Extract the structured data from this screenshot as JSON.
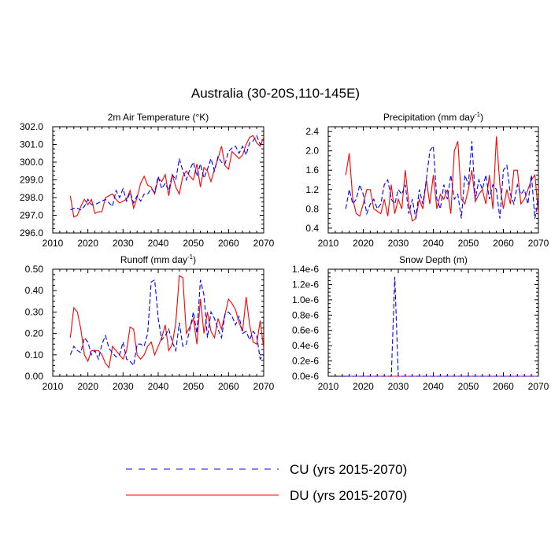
{
  "figure": {
    "title": "Australia (30-20S,110-145E)"
  },
  "legend": {
    "placement": "bottom-center",
    "entries": [
      {
        "label": "CU (yrs 2015-2070)",
        "color": "#0000ff",
        "style": "dashed"
      },
      {
        "label": "DU (yrs 2015-2070)",
        "color": "#ff0000",
        "style": "solid"
      }
    ]
  },
  "chart_data": [
    {
      "type": "line",
      "title": "2m Air Temperature (°K)",
      "xlim": [
        2010,
        2070
      ],
      "ylim": [
        296.0,
        302.0
      ],
      "xticks": [
        2010,
        2020,
        2030,
        2040,
        2050,
        2060,
        2070
      ],
      "yticks": [
        296.0,
        297.0,
        298.0,
        299.0,
        300.0,
        301.0,
        302.0
      ],
      "ytick_labels": [
        "296.0",
        "297.0",
        "298.0",
        "299.0",
        "300.0",
        "301.0",
        "302.0"
      ],
      "x": [
        2015,
        2016,
        2017,
        2018,
        2019,
        2020,
        2021,
        2022,
        2023,
        2024,
        2025,
        2026,
        2027,
        2028,
        2029,
        2030,
        2031,
        2032,
        2033,
        2034,
        2035,
        2036,
        2037,
        2038,
        2039,
        2040,
        2041,
        2042,
        2043,
        2044,
        2045,
        2046,
        2047,
        2048,
        2049,
        2050,
        2051,
        2052,
        2053,
        2054,
        2055,
        2056,
        2057,
        2058,
        2059,
        2060,
        2061,
        2062,
        2063,
        2064,
        2065,
        2066,
        2067,
        2068,
        2069,
        2070
      ],
      "series": [
        {
          "name": "CU (yrs 2015-2070)",
          "values": [
            297.3,
            297.4,
            297.4,
            297.3,
            297.5,
            297.9,
            297.6,
            297.6,
            297.7,
            297.8,
            297.9,
            297.7,
            297.5,
            298.4,
            298.0,
            298.5,
            297.8,
            298.3,
            297.7,
            298.1,
            297.8,
            298.2,
            298.2,
            298.5,
            298.3,
            299.2,
            298.5,
            298.8,
            298.4,
            299.3,
            299.0,
            300.2,
            299.5,
            299.0,
            299.6,
            300.0,
            299.2,
            299.9,
            299.1,
            299.6,
            300.2,
            299.5,
            300.3,
            300.0,
            299.9,
            300.6,
            300.8,
            300.9,
            300.5,
            300.9,
            300.4,
            301.1,
            301.2,
            301.5,
            301.0,
            301.2
          ]
        },
        {
          "name": "DU (yrs 2015-2070)",
          "values": [
            298.1,
            296.9,
            297.0,
            297.5,
            297.9,
            297.6,
            297.9,
            297.1,
            297.2,
            297.2,
            298.0,
            298.1,
            298.2,
            297.9,
            297.7,
            297.8,
            297.9,
            298.4,
            297.4,
            298.0,
            298.8,
            299.2,
            298.7,
            298.6,
            298.2,
            299.1,
            298.9,
            299.3,
            298.1,
            299.3,
            298.6,
            298.2,
            299.2,
            299.5,
            299.2,
            299.0,
            299.9,
            298.6,
            299.7,
            299.5,
            298.9,
            299.6,
            300.2,
            300.9,
            299.8,
            299.6,
            300.6,
            300.4,
            300.2,
            300.4,
            301.0,
            301.4,
            301.5,
            301.1,
            300.9,
            301.4
          ]
        }
      ]
    },
    {
      "type": "line",
      "title": "Precipitation (mm day",
      "title_superscript": "-1",
      "title_suffix": ")",
      "xlim": [
        2010,
        2070
      ],
      "ylim": [
        0.3,
        2.5
      ],
      "xticks": [
        2010,
        2020,
        2030,
        2040,
        2050,
        2060,
        2070
      ],
      "yticks": [
        0.4,
        0.8,
        1.2,
        1.6,
        2.0,
        2.4
      ],
      "ytick_labels": [
        "0.4",
        "0.8",
        "1.2",
        "1.6",
        "2.0",
        "2.4"
      ],
      "x": [
        2015,
        2016,
        2017,
        2018,
        2019,
        2020,
        2021,
        2022,
        2023,
        2024,
        2025,
        2026,
        2027,
        2028,
        2029,
        2030,
        2031,
        2032,
        2033,
        2034,
        2035,
        2036,
        2037,
        2038,
        2039,
        2040,
        2041,
        2042,
        2043,
        2044,
        2045,
        2046,
        2047,
        2048,
        2049,
        2050,
        2051,
        2052,
        2053,
        2054,
        2055,
        2056,
        2057,
        2058,
        2059,
        2060,
        2061,
        2062,
        2063,
        2064,
        2065,
        2066,
        2067,
        2068,
        2069,
        2070
      ],
      "series": [
        {
          "name": "CU (yrs 2015-2070)",
          "values": [
            0.8,
            1.2,
            0.9,
            1.0,
            1.3,
            1.1,
            0.7,
            0.9,
            1.0,
            0.8,
            0.9,
            1.3,
            1.4,
            1.0,
            0.9,
            1.2,
            1.1,
            1.3,
            0.7,
            1.0,
            0.6,
            1.2,
            0.9,
            1.4,
            2.0,
            2.1,
            1.0,
            0.8,
            1.3,
            1.0,
            1.5,
            1.0,
            1.1,
            0.6,
            1.5,
            1.3,
            2.2,
            1.0,
            1.4,
            1.2,
            1.5,
            1.0,
            1.3,
            1.2,
            0.6,
            1.6,
            1.7,
            1.1,
            0.9,
            1.3,
            1.1,
            1.2,
            0.9,
            1.5,
            0.6,
            1.0
          ]
        },
        {
          "name": "DU (yrs 2015-2070)",
          "values": [
            1.5,
            1.95,
            1.0,
            0.7,
            0.65,
            0.9,
            1.2,
            1.2,
            0.8,
            0.75,
            0.7,
            1.0,
            0.65,
            1.3,
            0.7,
            1.0,
            0.8,
            1.6,
            0.9,
            0.55,
            0.6,
            1.0,
            0.8,
            1.4,
            0.9,
            1.5,
            0.8,
            1.1,
            1.0,
            1.2,
            0.7,
            2.0,
            2.2,
            1.0,
            0.9,
            1.2,
            1.6,
            0.95,
            1.1,
            1.2,
            0.9,
            1.5,
            0.8,
            2.3,
            1.3,
            0.8,
            1.2,
            0.9,
            1.6,
            1.6,
            0.9,
            1.0,
            1.2,
            1.4,
            1.5,
            0.7
          ]
        }
      ]
    },
    {
      "type": "line",
      "title": "Runoff (mm day",
      "title_superscript": "-1",
      "title_suffix": ")",
      "xlim": [
        2010,
        2070
      ],
      "ylim": [
        0.0,
        0.5
      ],
      "xticks": [
        2010,
        2020,
        2030,
        2040,
        2050,
        2060,
        2070
      ],
      "yticks": [
        0.0,
        0.1,
        0.2,
        0.3,
        0.4,
        0.5
      ],
      "ytick_labels": [
        "0.00",
        "0.10",
        "0.20",
        "0.30",
        "0.40",
        "0.50"
      ],
      "x": [
        2015,
        2016,
        2017,
        2018,
        2019,
        2020,
        2021,
        2022,
        2023,
        2024,
        2025,
        2026,
        2027,
        2028,
        2029,
        2030,
        2031,
        2032,
        2033,
        2034,
        2035,
        2036,
        2037,
        2038,
        2039,
        2040,
        2041,
        2042,
        2043,
        2044,
        2045,
        2046,
        2047,
        2048,
        2049,
        2050,
        2051,
        2052,
        2053,
        2054,
        2055,
        2056,
        2057,
        2058,
        2059,
        2060,
        2061,
        2062,
        2063,
        2064,
        2065,
        2066,
        2067,
        2068,
        2069,
        2070
      ],
      "series": [
        {
          "name": "CU (yrs 2015-2070)",
          "values": [
            0.1,
            0.14,
            0.12,
            0.11,
            0.18,
            0.16,
            0.1,
            0.12,
            0.08,
            0.15,
            0.19,
            0.13,
            0.11,
            0.09,
            0.1,
            0.16,
            0.08,
            0.07,
            0.05,
            0.15,
            0.15,
            0.14,
            0.2,
            0.44,
            0.45,
            0.27,
            0.17,
            0.19,
            0.22,
            0.16,
            0.12,
            0.25,
            0.14,
            0.15,
            0.22,
            0.3,
            0.2,
            0.45,
            0.38,
            0.18,
            0.3,
            0.27,
            0.22,
            0.18,
            0.29,
            0.3,
            0.28,
            0.24,
            0.28,
            0.2,
            0.21,
            0.17,
            0.21,
            0.19,
            0.08,
            0.1
          ]
        },
        {
          "name": "DU (yrs 2015-2070)",
          "values": [
            0.18,
            0.32,
            0.3,
            0.22,
            0.1,
            0.07,
            0.12,
            0.12,
            0.12,
            0.1,
            0.06,
            0.04,
            0.14,
            0.12,
            0.1,
            0.08,
            0.12,
            0.23,
            0.22,
            0.1,
            0.08,
            0.1,
            0.14,
            0.16,
            0.1,
            0.14,
            0.18,
            0.24,
            0.12,
            0.15,
            0.25,
            0.47,
            0.46,
            0.2,
            0.23,
            0.27,
            0.15,
            0.36,
            0.2,
            0.3,
            0.21,
            0.18,
            0.27,
            0.22,
            0.29,
            0.36,
            0.34,
            0.31,
            0.25,
            0.21,
            0.37,
            0.24,
            0.16,
            0.15,
            0.26,
            0.13
          ]
        }
      ]
    },
    {
      "type": "line",
      "title": "Snow Depth (m)",
      "xlim": [
        2010,
        2070
      ],
      "ylim": [
        0.0,
        1.4e-06
      ],
      "xticks": [
        2010,
        2020,
        2030,
        2040,
        2050,
        2060,
        2070
      ],
      "yticks": [
        0.0,
        2e-07,
        4e-07,
        6e-07,
        8e-07,
        1e-06,
        1.2e-06,
        1.4e-06
      ],
      "ytick_labels": [
        "0.0e-6",
        "0.2e-6",
        "0.4e-6",
        "0.6e-6",
        "0.8e-6",
        "1.0e-6",
        "1.2e-6",
        "1.4e-6"
      ],
      "x": [
        2015,
        2016,
        2017,
        2018,
        2019,
        2020,
        2021,
        2022,
        2023,
        2024,
        2025,
        2026,
        2027,
        2028,
        2029,
        2030,
        2031,
        2032,
        2033,
        2034,
        2035,
        2036,
        2037,
        2038,
        2039,
        2040,
        2041,
        2042,
        2043,
        2044,
        2045,
        2046,
        2047,
        2048,
        2049,
        2050,
        2051,
        2052,
        2053,
        2054,
        2055,
        2056,
        2057,
        2058,
        2059,
        2060,
        2061,
        2062,
        2063,
        2064,
        2065,
        2066,
        2067,
        2068,
        2069,
        2070
      ],
      "series": [
        {
          "name": "CU (yrs 2015-2070)",
          "values": [
            0,
            0,
            0,
            0,
            0,
            0,
            0,
            0,
            0,
            0,
            0,
            0,
            0,
            0,
            1.3e-06,
            0,
            0,
            0,
            0,
            0,
            0,
            0,
            0,
            0,
            0,
            0,
            0,
            0,
            0,
            0,
            0,
            0,
            0,
            0,
            0,
            0,
            0,
            0,
            0,
            0,
            0,
            0,
            0,
            0,
            0,
            0,
            0,
            0,
            0,
            0,
            0,
            0,
            0,
            0,
            0,
            0
          ]
        },
        {
          "name": "DU (yrs 2015-2070)",
          "values": [
            0,
            0,
            0,
            0,
            0,
            0,
            0,
            0,
            0,
            0,
            0,
            0,
            0,
            0,
            0,
            0,
            0,
            0,
            0,
            0,
            0,
            0,
            0,
            0,
            0,
            0,
            0,
            0,
            0,
            0,
            0,
            0,
            0,
            0,
            0,
            0,
            0,
            0,
            0,
            0,
            0,
            0,
            0,
            0,
            0,
            0,
            0,
            0,
            0,
            0,
            0,
            0,
            0,
            0,
            0,
            0
          ]
        }
      ]
    }
  ]
}
